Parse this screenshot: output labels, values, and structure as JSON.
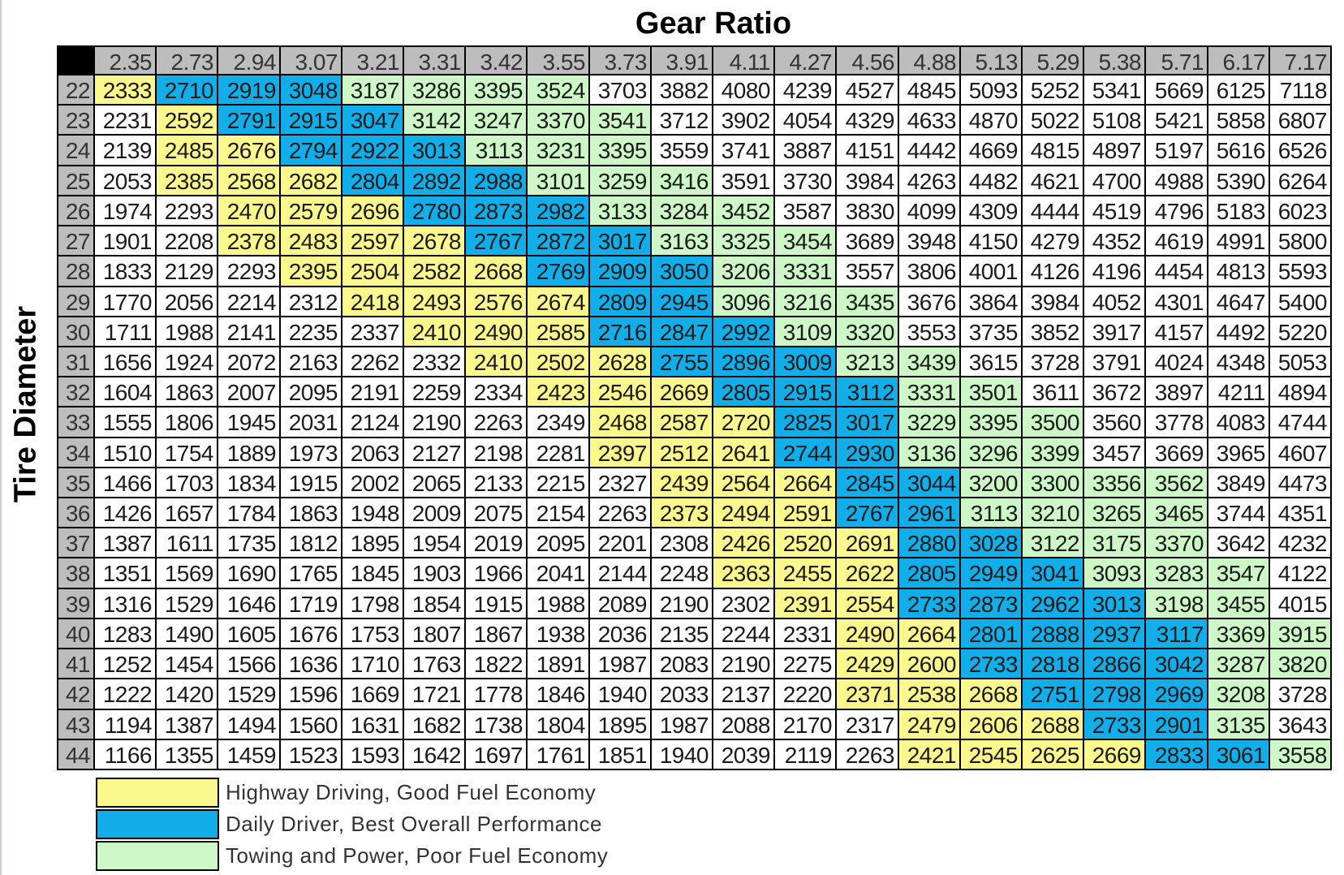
{
  "chart_data": {
    "type": "table",
    "title": "Gear Ratio",
    "row_axis_label": "Tire Diameter",
    "gear_ratios": [
      "2.35",
      "2.73",
      "2.94",
      "3.07",
      "3.21",
      "3.31",
      "3.42",
      "3.55",
      "3.73",
      "3.91",
      "4.11",
      "4.27",
      "4.56",
      "4.88",
      "5.13",
      "5.29",
      "5.38",
      "5.71",
      "6.17",
      "7.17"
    ],
    "tire_diameters": [
      "22",
      "23",
      "24",
      "25",
      "26",
      "27",
      "28",
      "29",
      "30",
      "31",
      "32",
      "33",
      "34",
      "35",
      "36",
      "37",
      "38",
      "39",
      "40",
      "41",
      "42",
      "43",
      "44"
    ],
    "values": [
      [
        2333,
        2710,
        2919,
        3048,
        3187,
        3286,
        3395,
        3524,
        3703,
        3882,
        4080,
        4239,
        4527,
        4845,
        5093,
        5252,
        5341,
        5669,
        6125,
        7118
      ],
      [
        2231,
        2592,
        2791,
        2915,
        3047,
        3142,
        3247,
        3370,
        3541,
        3712,
        3902,
        4054,
        4329,
        4633,
        4870,
        5022,
        5108,
        5421,
        5858,
        6807
      ],
      [
        2139,
        2485,
        2676,
        2794,
        2922,
        3013,
        3113,
        3231,
        3395,
        3559,
        3741,
        3887,
        4151,
        4442,
        4669,
        4815,
        4897,
        5197,
        5616,
        6526
      ],
      [
        2053,
        2385,
        2568,
        2682,
        2804,
        2892,
        2988,
        3101,
        3259,
        3416,
        3591,
        3730,
        3984,
        4263,
        4482,
        4621,
        4700,
        4988,
        5390,
        6264
      ],
      [
        1974,
        2293,
        2470,
        2579,
        2696,
        2780,
        2873,
        2982,
        3133,
        3284,
        3452,
        3587,
        3830,
        4099,
        4309,
        4444,
        4519,
        4796,
        5183,
        6023
      ],
      [
        1901,
        2208,
        2378,
        2483,
        2597,
        2678,
        2767,
        2872,
        3017,
        3163,
        3325,
        3454,
        3689,
        3948,
        4150,
        4279,
        4352,
        4619,
        4991,
        5800
      ],
      [
        1833,
        2129,
        2293,
        2395,
        2504,
        2582,
        2668,
        2769,
        2909,
        3050,
        3206,
        3331,
        3557,
        3806,
        4001,
        4126,
        4196,
        4454,
        4813,
        5593
      ],
      [
        1770,
        2056,
        2214,
        2312,
        2418,
        2493,
        2576,
        2674,
        2809,
        2945,
        3096,
        3216,
        3435,
        3676,
        3864,
        3984,
        4052,
        4301,
        4647,
        5400
      ],
      [
        1711,
        1988,
        2141,
        2235,
        2337,
        2410,
        2490,
        2585,
        2716,
        2847,
        2992,
        3109,
        3320,
        3553,
        3735,
        3852,
        3917,
        4157,
        4492,
        5220
      ],
      [
        1656,
        1924,
        2072,
        2163,
        2262,
        2332,
        2410,
        2502,
        2628,
        2755,
        2896,
        3009,
        3213,
        3439,
        3615,
        3728,
        3791,
        4024,
        4348,
        5053
      ],
      [
        1604,
        1863,
        2007,
        2095,
        2191,
        2259,
        2334,
        2423,
        2546,
        2669,
        2805,
        2915,
        3112,
        3331,
        3501,
        3611,
        3672,
        3897,
        4211,
        4894
      ],
      [
        1555,
        1806,
        1945,
        2031,
        2124,
        2190,
        2263,
        2349,
        2468,
        2587,
        2720,
        2825,
        3017,
        3229,
        3395,
        3500,
        3560,
        3778,
        4083,
        4744
      ],
      [
        1510,
        1754,
        1889,
        1973,
        2063,
        2127,
        2198,
        2281,
        2397,
        2512,
        2641,
        2744,
        2930,
        3136,
        3296,
        3399,
        3457,
        3669,
        3965,
        4607
      ],
      [
        1466,
        1703,
        1834,
        1915,
        2002,
        2065,
        2133,
        2215,
        2327,
        2439,
        2564,
        2664,
        2845,
        3044,
        3200,
        3300,
        3356,
        3562,
        3849,
        4473
      ],
      [
        1426,
        1657,
        1784,
        1863,
        1948,
        2009,
        2075,
        2154,
        2263,
        2373,
        2494,
        2591,
        2767,
        2961,
        3113,
        3210,
        3265,
        3465,
        3744,
        4351
      ],
      [
        1387,
        1611,
        1735,
        1812,
        1895,
        1954,
        2019,
        2095,
        2201,
        2308,
        2426,
        2520,
        2691,
        2880,
        3028,
        3122,
        3175,
        3370,
        3642,
        4232
      ],
      [
        1351,
        1569,
        1690,
        1765,
        1845,
        1903,
        1966,
        2041,
        2144,
        2248,
        2363,
        2455,
        2622,
        2805,
        2949,
        3041,
        3093,
        3283,
        3547,
        4122
      ],
      [
        1316,
        1529,
        1646,
        1719,
        1798,
        1854,
        1915,
        1988,
        2089,
        2190,
        2302,
        2391,
        2554,
        2733,
        2873,
        2962,
        3013,
        3198,
        3455,
        4015
      ],
      [
        1283,
        1490,
        1605,
        1676,
        1753,
        1807,
        1867,
        1938,
        2036,
        2135,
        2244,
        2331,
        2490,
        2664,
        2801,
        2888,
        2937,
        3117,
        3369,
        3915
      ],
      [
        1252,
        1454,
        1566,
        1636,
        1710,
        1763,
        1822,
        1891,
        1987,
        2083,
        2190,
        2275,
        2429,
        2600,
        2733,
        2818,
        2866,
        3042,
        3287,
        3820
      ],
      [
        1222,
        1420,
        1529,
        1596,
        1669,
        1721,
        1778,
        1846,
        1940,
        2033,
        2137,
        2220,
        2371,
        2538,
        2668,
        2751,
        2798,
        2969,
        3208,
        3728
      ],
      [
        1194,
        1387,
        1494,
        1560,
        1631,
        1682,
        1738,
        1804,
        1895,
        1987,
        2088,
        2170,
        2317,
        2479,
        2606,
        2688,
        2733,
        2901,
        3135,
        3643
      ],
      [
        1166,
        1355,
        1459,
        1523,
        1593,
        1642,
        1697,
        1761,
        1851,
        1940,
        2039,
        2119,
        2263,
        2421,
        2545,
        2625,
        2669,
        2833,
        3061,
        3558
      ]
    ],
    "categories_by_row": [
      "HDDDTTTT............",
      ".HDDDTTTT...........",
      ".HHDDDTTT...........",
      ".HHHDDDTTT..........",
      "..HHHDDDTTT.........",
      "..HHHHDDDTTT........",
      "...HHHHDDDTT........",
      "....HHHHDDTTT.......",
      ".....HHHDDDTT.......",
      "......HHHDDDTT......",
      ".......HHHDDDTT.....",
      "........HHHDDTTT....",
      "........HHHDDTTT....",
      ".........HHHDDTTTT..",
      ".........HHHDDTTTT..",
      "..........HHHDDTTT..",
      "..........HHHDDDTTT.",
      "...........HHDDDDTT.",
      "............HHDDDDTT",
      "............HHDDDDTT",
      "............HHHDDDT.",
      ".............HHHDDT.",
      ".............HHHHDDT"
    ],
    "category_colors": {
      "H": "#fbf98e",
      "D": "#12aeea",
      "T": "#cdf7c7",
      ".": "#ffffff"
    },
    "legend": [
      {
        "key": "H",
        "label": "Highway Driving, Good Fuel Economy",
        "color": "#fbf98e"
      },
      {
        "key": "D",
        "label": "Daily Driver, Best Overall Performance",
        "color": "#12aeea"
      },
      {
        "key": "T",
        "label": "Towing and Power, Poor Fuel Economy",
        "color": "#cdf7c7"
      }
    ]
  }
}
